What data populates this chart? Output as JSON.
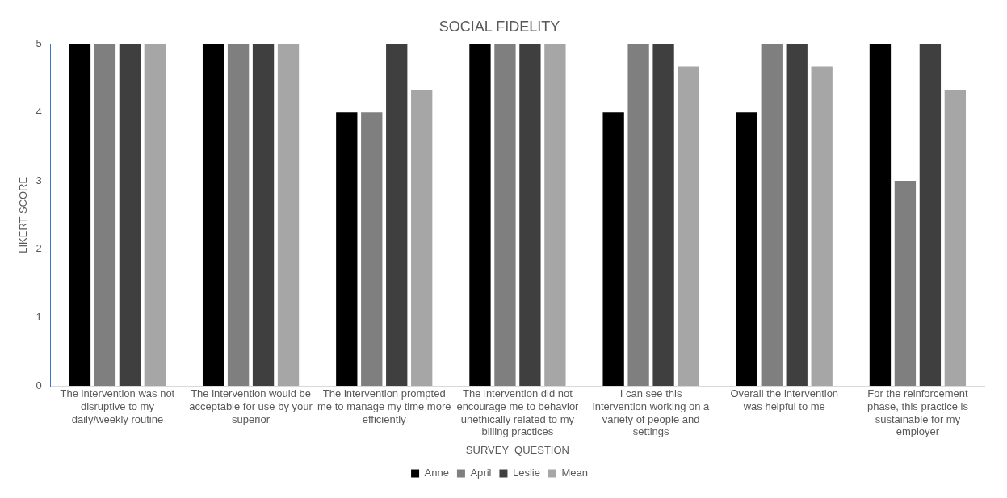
{
  "chart_data": {
    "type": "bar",
    "title": "SOCIAL FIDELITY",
    "xlabel": "SURVEY  QUESTION",
    "ylabel": "LIKERT SCORE",
    "categories": [
      "The intervention was not disruptive to my daily/weekly routine",
      "The intervention would be acceptable for use by your superior",
      "The intervention prompted me to manage my time more efficiently",
      "The intervention did not encourage me to behavior unethically related to my billing practices",
      "I can see this intervention working on a variety of people and settings",
      "Overall the intervention was helpful to me",
      "For the reinforcement phase, this practice is sustainable for my employer"
    ],
    "series": [
      {
        "name": "Anne",
        "color": "#000000",
        "values": [
          5,
          5,
          4,
          5,
          4,
          4,
          5
        ]
      },
      {
        "name": "April",
        "color": "#7f7f7f",
        "values": [
          5,
          5,
          4,
          5,
          5,
          5,
          3
        ]
      },
      {
        "name": "Leslie",
        "color": "#3f3f3f",
        "values": [
          5,
          5,
          5,
          5,
          5,
          5,
          5
        ]
      },
      {
        "name": "Mean",
        "color": "#a6a6a6",
        "values": [
          5,
          5,
          4.33,
          5,
          4.67,
          4.67,
          4.33
        ]
      }
    ],
    "ylim": [
      0,
      5
    ],
    "yticks": [
      0,
      1,
      2,
      3,
      4,
      5
    ],
    "grid": false,
    "legend": "bottom"
  }
}
